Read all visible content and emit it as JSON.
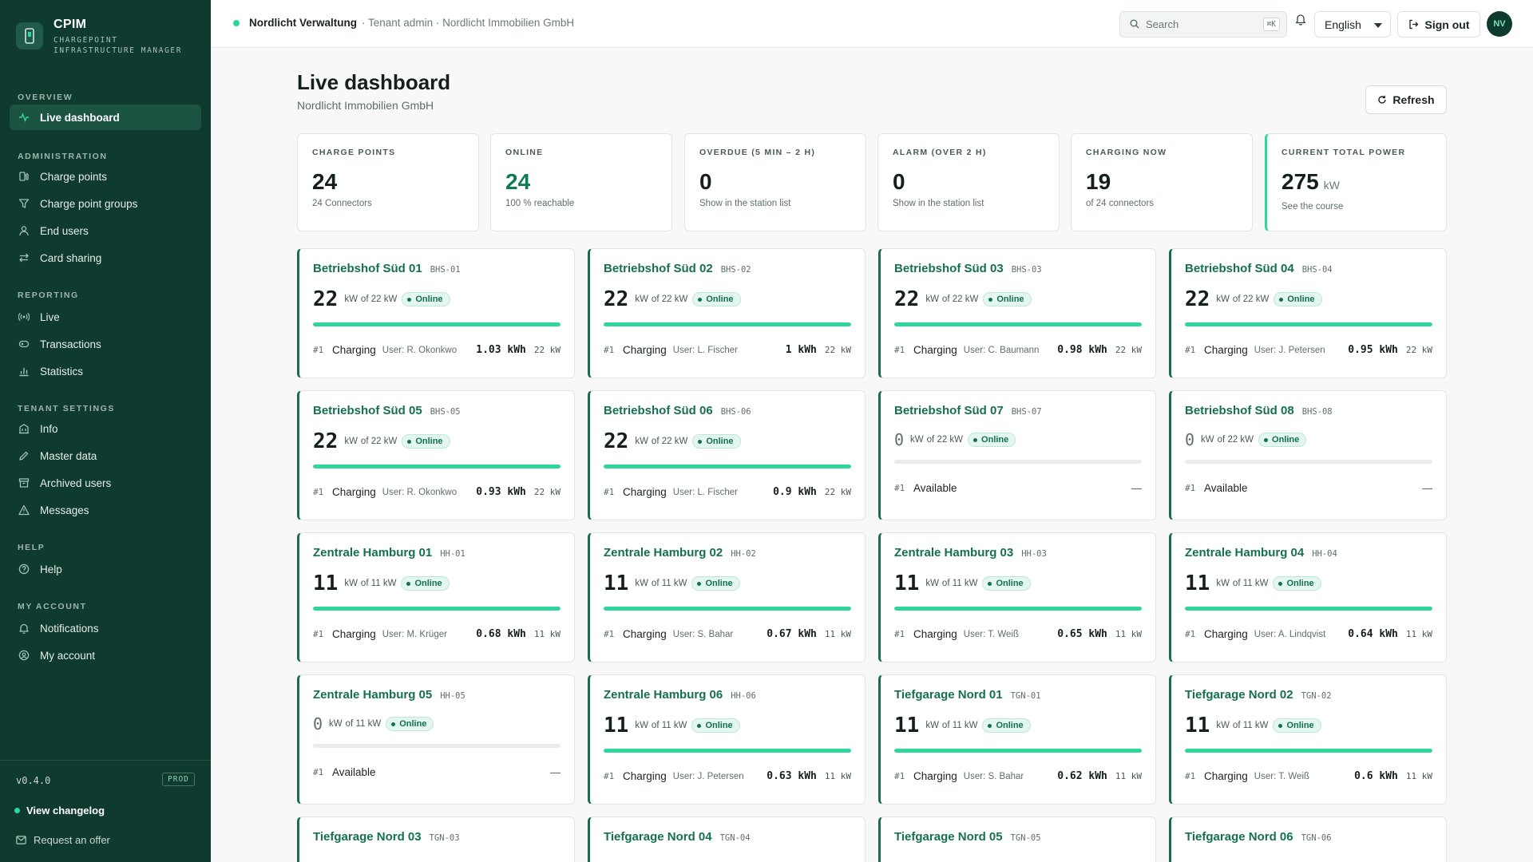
{
  "brand": {
    "name": "CPIM",
    "subtitle_line1": "CHARGEPOINT",
    "subtitle_line2": "INFRASTRUCTURE MANAGER"
  },
  "sidebar": {
    "sections": [
      {
        "title": "OVERVIEW",
        "items": [
          {
            "label": "Live dashboard",
            "icon": "activity-icon",
            "active": true
          }
        ]
      },
      {
        "title": "ADMINISTRATION",
        "items": [
          {
            "label": "Charge points",
            "icon": "fuel-pump-icon"
          },
          {
            "label": "Charge point groups",
            "icon": "filter-icon"
          },
          {
            "label": "End users",
            "icon": "user-icon"
          },
          {
            "label": "Card sharing",
            "icon": "swap-icon"
          }
        ]
      },
      {
        "title": "REPORTING",
        "items": [
          {
            "label": "Live",
            "icon": "broadcast-icon"
          },
          {
            "label": "Transactions",
            "icon": "card-icon"
          },
          {
            "label": "Statistics",
            "icon": "bar-chart-icon"
          }
        ]
      },
      {
        "title": "TENANT SETTINGS",
        "items": [
          {
            "label": "Info",
            "icon": "building-icon"
          },
          {
            "label": "Master data",
            "icon": "pencil-icon"
          },
          {
            "label": "Archived users",
            "icon": "archive-icon"
          },
          {
            "label": "Messages",
            "icon": "warning-icon"
          }
        ]
      },
      {
        "title": "HELP",
        "items": [
          {
            "label": "Help",
            "icon": "help-icon"
          }
        ]
      },
      {
        "title": "MY ACCOUNT",
        "items": [
          {
            "label": "Notifications",
            "icon": "bell-icon"
          },
          {
            "label": "My account",
            "icon": "account-icon"
          }
        ]
      }
    ],
    "version": "v0.4.0",
    "env_badge": "PROD",
    "changelog": "View changelog",
    "request_offer": "Request an offer"
  },
  "topbar": {
    "tenant_name": "Nordlicht Verwaltung",
    "tenant_role": "· Tenant admin · Nordlicht Immobilien GmbH",
    "search_placeholder": "Search",
    "search_shortcut": "⌘K",
    "language": "English",
    "sign_out": "Sign out",
    "avatar_initials": "NV"
  },
  "page": {
    "title": "Live dashboard",
    "subtitle": "Nordlicht Immobilien GmbH",
    "refresh": "Refresh"
  },
  "kpis": [
    {
      "label": "CHARGE POINTS",
      "value": "24",
      "unit": "",
      "sub": "24 Connectors",
      "green": false,
      "accent": false
    },
    {
      "label": "ONLINE",
      "value": "24",
      "unit": "",
      "sub": "100 % reachable",
      "green": true,
      "accent": false
    },
    {
      "label": "OVERDUE (5 MIN – 2 H)",
      "value": "0",
      "unit": "",
      "sub": "Show in the station list",
      "green": false,
      "accent": false
    },
    {
      "label": "ALARM (OVER 2 H)",
      "value": "0",
      "unit": "",
      "sub": "Show in the station list",
      "green": false,
      "accent": false
    },
    {
      "label": "CHARGING NOW",
      "value": "19",
      "unit": "",
      "sub": "of 24 connectors",
      "green": false,
      "accent": false
    },
    {
      "label": "CURRENT TOTAL POWER",
      "value": "275",
      "unit": "kW",
      "sub": "See the course",
      "green": false,
      "accent": true
    }
  ],
  "labels": {
    "unit_kw": "kW",
    "status_online": "Online",
    "dash": "—"
  },
  "stations": [
    {
      "name": "Betriebshof Süd 01",
      "code": "BHS-01",
      "power": "22",
      "max": "of 22 kW",
      "fill": 1.0,
      "connector": "#1",
      "status": "Charging",
      "user": "User: R. Okonkwo",
      "energy": "1.03 kWh",
      "kw": "22 kW"
    },
    {
      "name": "Betriebshof Süd 02",
      "code": "BHS-02",
      "power": "22",
      "max": "of 22 kW",
      "fill": 1.0,
      "connector": "#1",
      "status": "Charging",
      "user": "User: L. Fischer",
      "energy": "1 kWh",
      "kw": "22 kW"
    },
    {
      "name": "Betriebshof Süd 03",
      "code": "BHS-03",
      "power": "22",
      "max": "of 22 kW",
      "fill": 1.0,
      "connector": "#1",
      "status": "Charging",
      "user": "User: C. Baumann",
      "energy": "0.98 kWh",
      "kw": "22 kW"
    },
    {
      "name": "Betriebshof Süd 04",
      "code": "BHS-04",
      "power": "22",
      "max": "of 22 kW",
      "fill": 1.0,
      "connector": "#1",
      "status": "Charging",
      "user": "User: J. Petersen",
      "energy": "0.95 kWh",
      "kw": "22 kW"
    },
    {
      "name": "Betriebshof Süd 05",
      "code": "BHS-05",
      "power": "22",
      "max": "of 22 kW",
      "fill": 1.0,
      "connector": "#1",
      "status": "Charging",
      "user": "User: R. Okonkwo",
      "energy": "0.93 kWh",
      "kw": "22 kW"
    },
    {
      "name": "Betriebshof Süd 06",
      "code": "BHS-06",
      "power": "22",
      "max": "of 22 kW",
      "fill": 1.0,
      "connector": "#1",
      "status": "Charging",
      "user": "User: L. Fischer",
      "energy": "0.9 kWh",
      "kw": "22 kW"
    },
    {
      "name": "Betriebshof Süd 07",
      "code": "BHS-07",
      "power": "0",
      "max": "of 22 kW",
      "fill": 0.0,
      "connector": "#1",
      "status": "Available",
      "user": "",
      "energy": "",
      "kw": ""
    },
    {
      "name": "Betriebshof Süd 08",
      "code": "BHS-08",
      "power": "0",
      "max": "of 22 kW",
      "fill": 0.0,
      "connector": "#1",
      "status": "Available",
      "user": "",
      "energy": "",
      "kw": ""
    },
    {
      "name": "Zentrale Hamburg 01",
      "code": "HH-01",
      "power": "11",
      "max": "of 11 kW",
      "fill": 1.0,
      "connector": "#1",
      "status": "Charging",
      "user": "User: M. Krüger",
      "energy": "0.68 kWh",
      "kw": "11 kW"
    },
    {
      "name": "Zentrale Hamburg 02",
      "code": "HH-02",
      "power": "11",
      "max": "of 11 kW",
      "fill": 1.0,
      "connector": "#1",
      "status": "Charging",
      "user": "User: S. Bahar",
      "energy": "0.67 kWh",
      "kw": "11 kW"
    },
    {
      "name": "Zentrale Hamburg 03",
      "code": "HH-03",
      "power": "11",
      "max": "of 11 kW",
      "fill": 1.0,
      "connector": "#1",
      "status": "Charging",
      "user": "User: T. Weiß",
      "energy": "0.65 kWh",
      "kw": "11 kW"
    },
    {
      "name": "Zentrale Hamburg 04",
      "code": "HH-04",
      "power": "11",
      "max": "of 11 kW",
      "fill": 1.0,
      "connector": "#1",
      "status": "Charging",
      "user": "User: A. Lindqvist",
      "energy": "0.64 kWh",
      "kw": "11 kW"
    },
    {
      "name": "Zentrale Hamburg 05",
      "code": "HH-05",
      "power": "0",
      "max": "of 11 kW",
      "fill": 0.0,
      "connector": "#1",
      "status": "Available",
      "user": "",
      "energy": "",
      "kw": ""
    },
    {
      "name": "Zentrale Hamburg 06",
      "code": "HH-06",
      "power": "11",
      "max": "of 11 kW",
      "fill": 1.0,
      "connector": "#1",
      "status": "Charging",
      "user": "User: J. Petersen",
      "energy": "0.63 kWh",
      "kw": "11 kW"
    },
    {
      "name": "Tiefgarage Nord 01",
      "code": "TGN-01",
      "power": "11",
      "max": "of 11 kW",
      "fill": 1.0,
      "connector": "#1",
      "status": "Charging",
      "user": "User: S. Bahar",
      "energy": "0.62 kWh",
      "kw": "11 kW"
    },
    {
      "name": "Tiefgarage Nord 02",
      "code": "TGN-02",
      "power": "11",
      "max": "of 11 kW",
      "fill": 1.0,
      "connector": "#1",
      "status": "Charging",
      "user": "User: T. Weiß",
      "energy": "0.6 kWh",
      "kw": "11 kW"
    },
    {
      "name": "Tiefgarage Nord 03",
      "code": "TGN-03"
    },
    {
      "name": "Tiefgarage Nord 04",
      "code": "TGN-04"
    },
    {
      "name": "Tiefgarage Nord 05",
      "code": "TGN-05"
    },
    {
      "name": "Tiefgarage Nord 06",
      "code": "TGN-06"
    }
  ]
}
